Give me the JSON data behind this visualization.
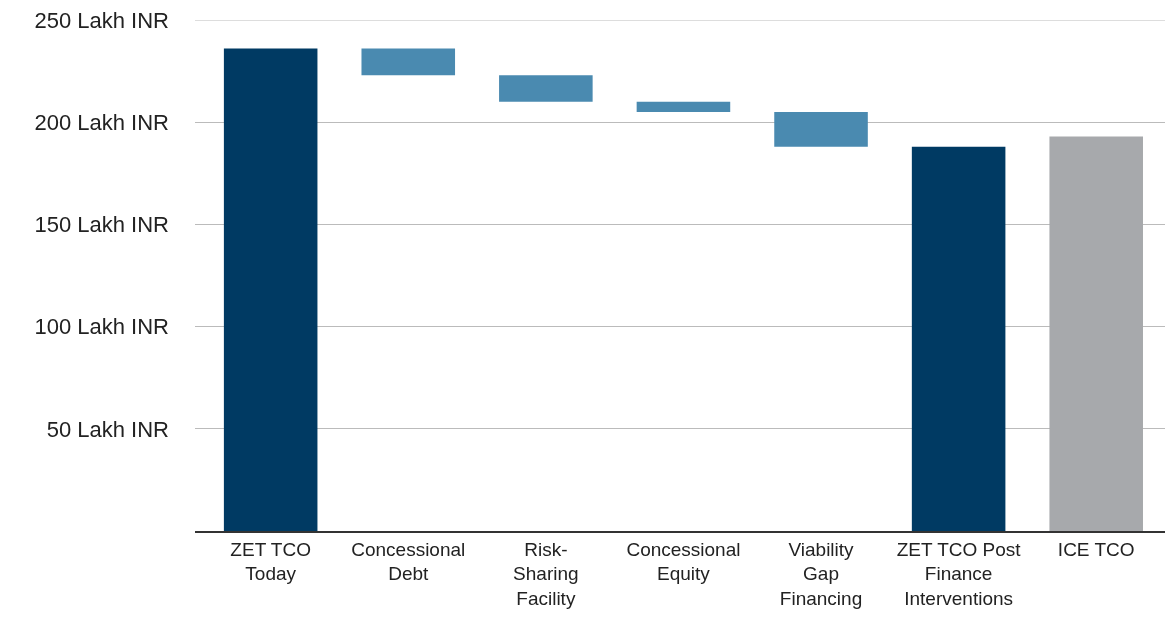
{
  "chart_data": {
    "type": "bar",
    "categories": [
      "ZET TCO Today",
      "Concessional Debt",
      "Risk-Sharing Facility",
      "Concessional Equity",
      "Viability Gap Financing",
      "ZET TCO Post Finance Interventions",
      "ICE TCO"
    ],
    "values": [
      236,
      13,
      13,
      5,
      17,
      188,
      193
    ],
    "base": [
      0,
      223,
      210,
      205,
      188,
      0,
      0
    ],
    "colors": [
      "#003a63",
      "#4a8ab0",
      "#4a8ab0",
      "#4a8ab0",
      "#4a8ab0",
      "#003a63",
      "#a7a9ac"
    ],
    "ylim": [
      0,
      250
    ],
    "yticks": [
      {
        "value": 50,
        "label": "50 Lakh INR"
      },
      {
        "value": 100,
        "label": "100 Lakh INR"
      },
      {
        "value": 150,
        "label": "150 Lakh INR"
      },
      {
        "value": 200,
        "label": "200 Lakh INR"
      },
      {
        "value": 250,
        "label": "250 Lakh INR"
      }
    ],
    "grid": "y"
  }
}
